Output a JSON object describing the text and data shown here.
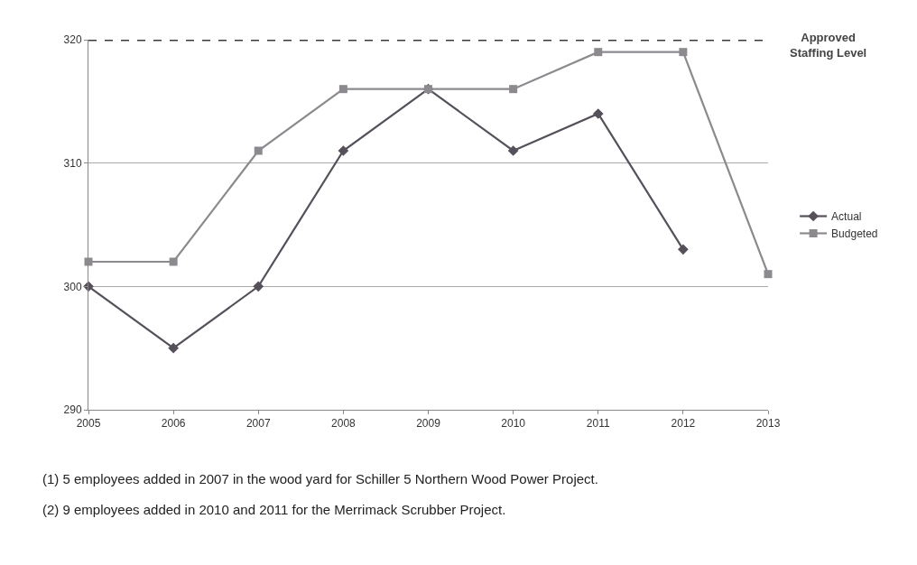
{
  "chart_data": {
    "type": "line",
    "x": [
      2005,
      2006,
      2007,
      2008,
      2009,
      2010,
      2011,
      2012,
      2013
    ],
    "series": [
      {
        "name": "Actual",
        "color": "#55505a",
        "marker": "diamond",
        "values": [
          300,
          295,
          300,
          311,
          316,
          311,
          314,
          303,
          null
        ]
      },
      {
        "name": "Budgeted",
        "color": "#8c8a8e",
        "marker": "square",
        "values": [
          302,
          302,
          311,
          316,
          316,
          316,
          319,
          319,
          301
        ]
      }
    ],
    "ref_lines": [
      {
        "axis": "y",
        "value": 320,
        "label": "Approved Staffing Level",
        "color": "#3a3a3a",
        "line_style": "dashed"
      }
    ],
    "annotations": [
      "(1) 5 employees added in 2007 in the wood yard for Schiller 5 Northern Wood Power Project.",
      "(2) 9 employees added in 2010 and 2011 for the Merrimack Scrubber Project."
    ],
    "xlim": [
      2005,
      2013
    ],
    "xticks": [
      2005,
      2006,
      2007,
      2008,
      2009,
      2010,
      2011,
      2012,
      2013
    ],
    "ylim": [
      290,
      320
    ],
    "yticks": [
      290,
      300,
      310,
      320
    ],
    "grid": "y",
    "legend": "right"
  }
}
